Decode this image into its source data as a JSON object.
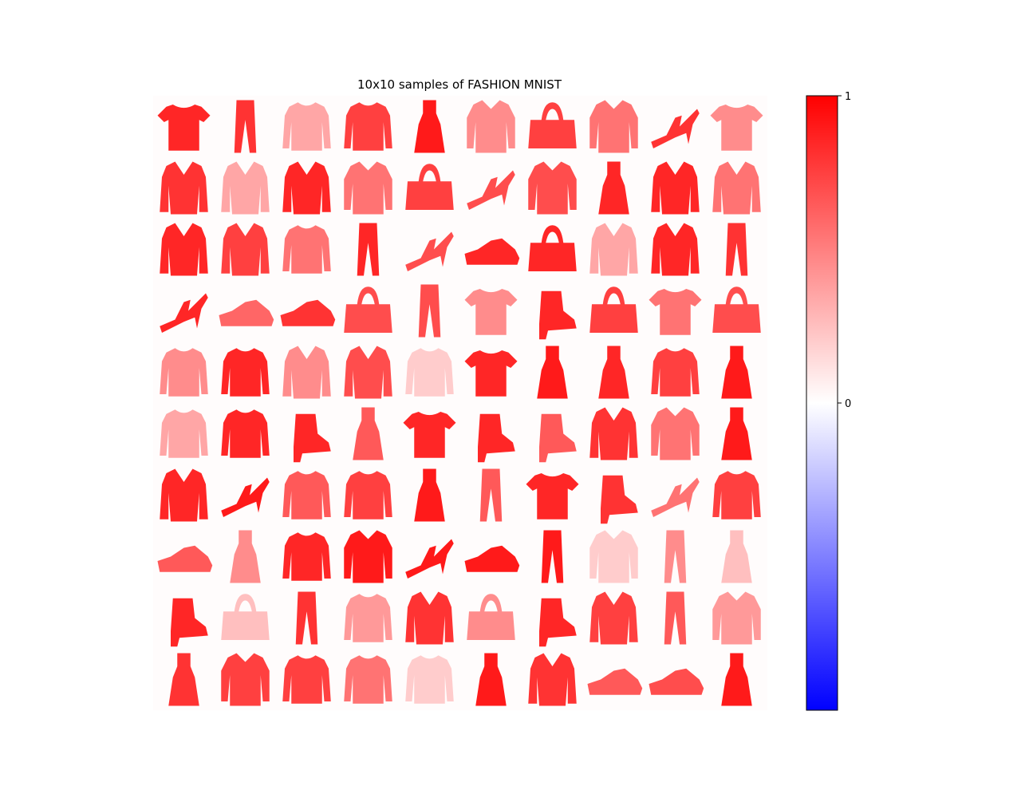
{
  "chart_data": {
    "type": "heatmap",
    "title": "10x10 samples of FASHION MNIST",
    "grid": {
      "rows": 10,
      "cols": 10
    },
    "axes_visible": false,
    "colormap": "bwr",
    "clim": [
      -1,
      1
    ],
    "colorbar": {
      "ticks": [
        {
          "value": 1,
          "label": "1"
        },
        {
          "value": 0,
          "label": "0"
        }
      ],
      "colors": {
        "top": "#ff0000",
        "middle": "#ffffff",
        "bottom": "#0000ff"
      }
    },
    "samples": [
      [
        "tshirt",
        "trouser",
        "pullover",
        "pullover",
        "dress",
        "shirt",
        "bag",
        "shirt",
        "sandal",
        "tshirt"
      ],
      [
        "coat",
        "coat",
        "coat",
        "shirt",
        "bag",
        "sandal",
        "shirt",
        "dress",
        "coat",
        "coat"
      ],
      [
        "coat",
        "coat",
        "pullover",
        "trouser",
        "sandal",
        "sneaker",
        "bag",
        "coat",
        "coat",
        "trouser"
      ],
      [
        "sandal",
        "sneaker",
        "sneaker",
        "bag",
        "trouser",
        "tshirt",
        "ankle-boot",
        "bag",
        "tshirt",
        "bag"
      ],
      [
        "pullover",
        "pullover",
        "coat",
        "coat",
        "pullover",
        "tshirt",
        "dress",
        "dress",
        "pullover",
        "dress"
      ],
      [
        "pullover",
        "pullover",
        "ankle-boot",
        "dress",
        "tshirt",
        "ankle-boot",
        "ankle-boot",
        "coat",
        "shirt",
        "dress"
      ],
      [
        "coat",
        "sandal",
        "pullover",
        "pullover",
        "dress",
        "trouser",
        "tshirt",
        "ankle-boot",
        "sandal",
        "pullover"
      ],
      [
        "sneaker",
        "dress",
        "pullover",
        "shirt",
        "sandal",
        "sneaker",
        "trouser",
        "shirt",
        "trouser",
        "dress"
      ],
      [
        "ankle-boot",
        "bag",
        "trouser",
        "pullover",
        "coat",
        "bag",
        "ankle-boot",
        "coat",
        "trouser",
        "shirt"
      ],
      [
        "dress",
        "shirt",
        "pullover",
        "pullover",
        "pullover",
        "dress",
        "coat",
        "sneaker",
        "sneaker",
        "dress"
      ]
    ],
    "intensity": [
      [
        0.85,
        0.8,
        0.35,
        0.75,
        0.9,
        0.45,
        0.75,
        0.55,
        0.8,
        0.45
      ],
      [
        0.8,
        0.35,
        0.85,
        0.55,
        0.75,
        0.7,
        0.7,
        0.85,
        0.85,
        0.55
      ],
      [
        0.85,
        0.75,
        0.55,
        0.85,
        0.7,
        0.85,
        0.85,
        0.35,
        0.85,
        0.8
      ],
      [
        0.85,
        0.6,
        0.8,
        0.7,
        0.7,
        0.45,
        0.85,
        0.75,
        0.55,
        0.7
      ],
      [
        0.45,
        0.85,
        0.45,
        0.7,
        0.2,
        0.85,
        0.9,
        0.85,
        0.75,
        0.9
      ],
      [
        0.35,
        0.85,
        0.85,
        0.65,
        0.85,
        0.85,
        0.65,
        0.8,
        0.55,
        0.9
      ],
      [
        0.85,
        0.9,
        0.65,
        0.75,
        0.9,
        0.65,
        0.85,
        0.8,
        0.55,
        0.75
      ],
      [
        0.65,
        0.45,
        0.85,
        0.9,
        0.9,
        0.9,
        0.9,
        0.2,
        0.45,
        0.25
      ],
      [
        0.85,
        0.25,
        0.8,
        0.4,
        0.8,
        0.45,
        0.85,
        0.75,
        0.65,
        0.4
      ],
      [
        0.8,
        0.75,
        0.75,
        0.55,
        0.2,
        0.9,
        0.8,
        0.65,
        0.7,
        0.9
      ]
    ]
  }
}
